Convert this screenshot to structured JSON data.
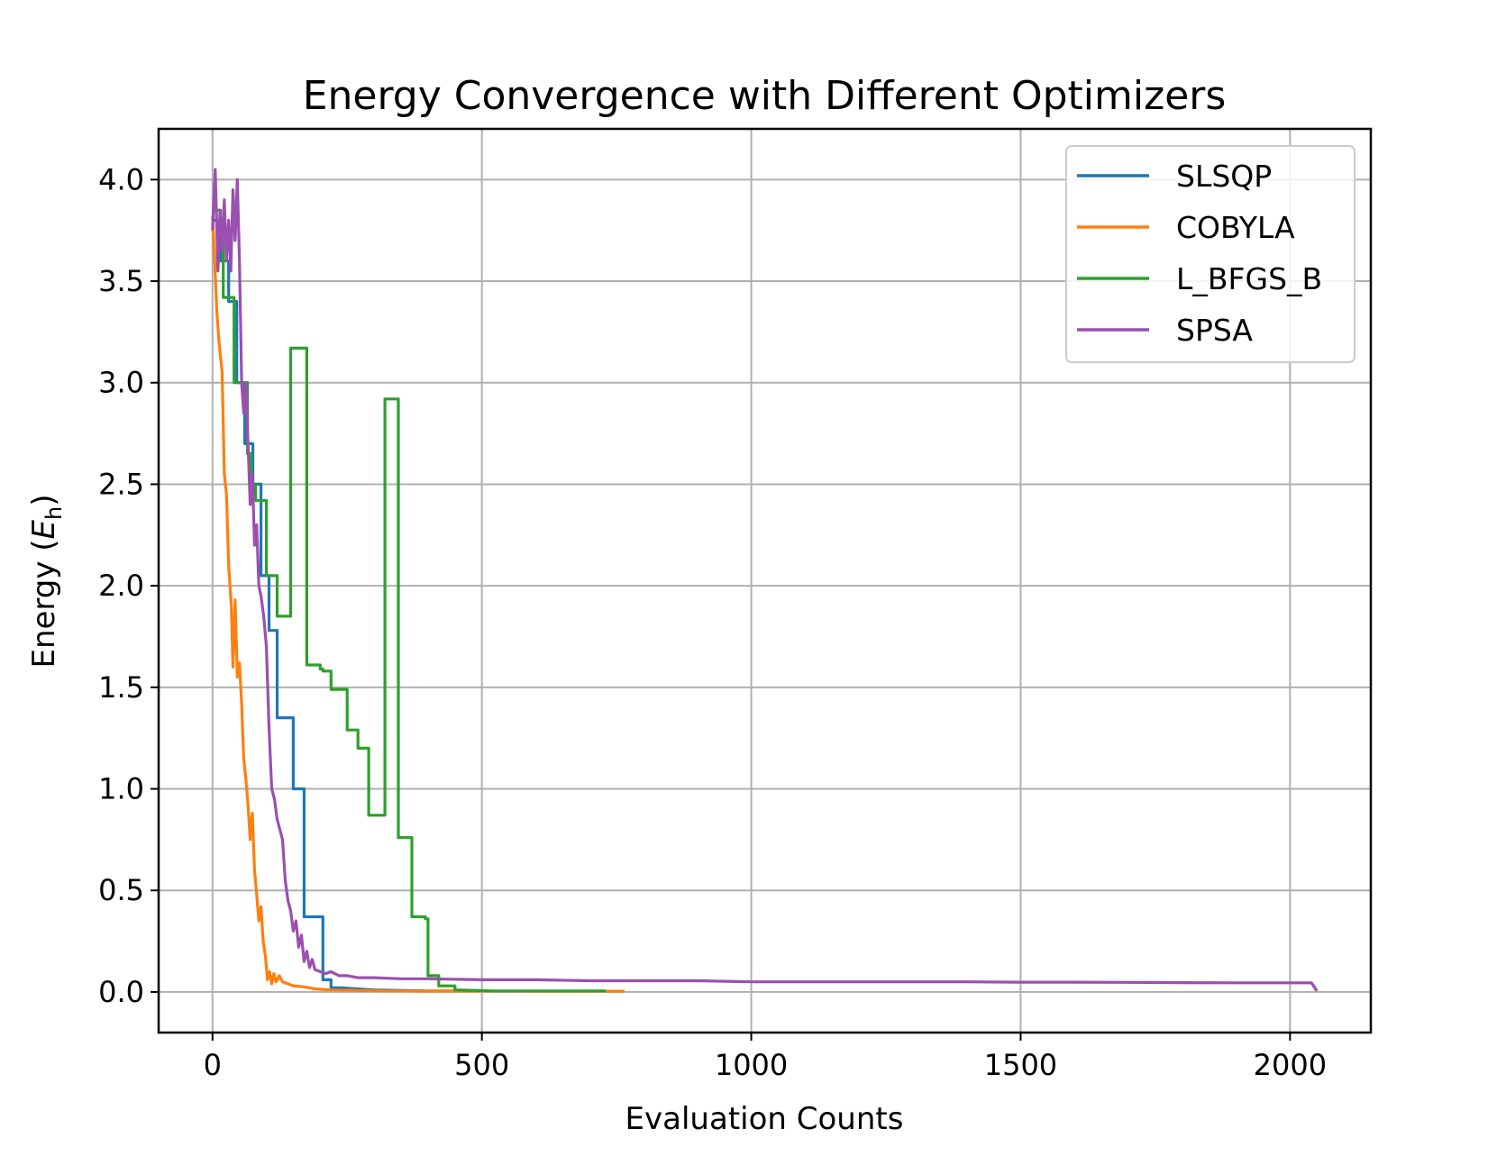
{
  "chart_data": {
    "type": "line",
    "title": "Energy Convergence with Different Optimizers",
    "xlabel": "Evaluation Counts",
    "ylabel_main": "Energy (",
    "ylabel_symbol": "E",
    "ylabel_sub": "h",
    "ylabel_close": ")",
    "xlim": [
      -100,
      2150
    ],
    "ylim": [
      -0.2,
      4.25
    ],
    "xticks": [
      0,
      500,
      1000,
      1500,
      2000
    ],
    "xtick_labels": [
      "0",
      "500",
      "1000",
      "1500",
      "2000"
    ],
    "yticks": [
      0.0,
      0.5,
      1.0,
      1.5,
      2.0,
      2.5,
      3.0,
      3.5,
      4.0
    ],
    "ytick_labels": [
      "0.0",
      "0.5",
      "1.0",
      "1.5",
      "2.0",
      "2.5",
      "3.0",
      "3.5",
      "4.0"
    ],
    "grid": true,
    "legend_position": "top-right",
    "series": [
      {
        "name": "SLSQP",
        "color": "#1f77b4",
        "x": [
          0,
          15,
          15,
          30,
          30,
          45,
          45,
          60,
          60,
          75,
          75,
          90,
          90,
          105,
          105,
          120,
          120,
          135,
          135,
          150,
          150,
          170,
          170,
          190,
          190,
          205,
          205,
          220,
          220,
          240,
          300,
          400,
          480
        ],
        "y": [
          3.8,
          3.8,
          3.6,
          3.6,
          3.4,
          3.4,
          3.0,
          3.0,
          2.7,
          2.7,
          2.5,
          2.5,
          2.05,
          2.05,
          1.78,
          1.78,
          1.35,
          1.35,
          1.35,
          1.35,
          1.0,
          1.0,
          0.37,
          0.37,
          0.37,
          0.37,
          0.06,
          0.06,
          0.02,
          0.02,
          0.01,
          0.005,
          0.005
        ]
      },
      {
        "name": "COBYLA",
        "color": "#ff7f0e",
        "x": [
          0,
          4,
          8,
          12,
          18,
          22,
          26,
          30,
          35,
          38,
          42,
          46,
          50,
          54,
          58,
          62,
          66,
          70,
          74,
          78,
          82,
          86,
          90,
          94,
          98,
          102,
          106,
          110,
          114,
          118,
          124,
          130,
          140,
          150,
          170,
          190,
          220,
          260,
          320,
          400,
          500,
          600,
          700,
          765
        ],
        "y": [
          3.82,
          3.6,
          3.35,
          3.2,
          3.05,
          2.55,
          2.45,
          2.1,
          1.9,
          1.6,
          1.93,
          1.55,
          1.62,
          1.42,
          1.15,
          1.05,
          0.92,
          0.75,
          0.88,
          0.6,
          0.48,
          0.35,
          0.42,
          0.25,
          0.18,
          0.06,
          0.1,
          0.04,
          0.09,
          0.05,
          0.08,
          0.05,
          0.04,
          0.03,
          0.025,
          0.015,
          0.01,
          0.008,
          0.005,
          0.004,
          0.004,
          0.003,
          0.003,
          0.003
        ]
      },
      {
        "name": "L_BFGS_B",
        "color": "#2ca02c",
        "x": [
          0,
          15,
          15,
          20,
          20,
          40,
          40,
          65,
          65,
          72,
          72,
          80,
          80,
          95,
          95,
          100,
          100,
          120,
          120,
          145,
          145,
          175,
          175,
          185,
          185,
          200,
          200,
          205,
          205,
          210,
          210,
          220,
          220,
          250,
          250,
          270,
          270,
          290,
          290,
          320,
          320,
          345,
          345,
          370,
          370,
          395,
          395,
          400,
          400,
          420,
          420,
          450,
          450,
          520,
          600,
          680,
          730
        ],
        "y": [
          3.85,
          3.85,
          3.7,
          3.7,
          3.42,
          3.42,
          3.0,
          3.0,
          2.65,
          2.65,
          2.5,
          2.5,
          2.42,
          2.42,
          2.42,
          2.42,
          2.05,
          2.05,
          1.85,
          1.85,
          3.17,
          3.17,
          1.61,
          1.61,
          1.61,
          1.61,
          1.59,
          1.59,
          1.58,
          1.58,
          1.58,
          1.58,
          1.49,
          1.49,
          1.29,
          1.29,
          1.2,
          1.2,
          0.87,
          0.87,
          2.92,
          2.92,
          0.76,
          0.76,
          0.37,
          0.37,
          0.36,
          0.36,
          0.08,
          0.08,
          0.03,
          0.03,
          0.01,
          0.005,
          0.005,
          0.005,
          0.005
        ]
      },
      {
        "name": "SPSA",
        "color": "#9b4fb0",
        "x": [
          0,
          5,
          10,
          14,
          18,
          22,
          26,
          30,
          34,
          38,
          42,
          46,
          50,
          54,
          58,
          62,
          66,
          70,
          74,
          78,
          82,
          86,
          90,
          95,
          100,
          105,
          110,
          115,
          120,
          125,
          130,
          135,
          140,
          145,
          150,
          155,
          160,
          165,
          170,
          175,
          180,
          185,
          190,
          200,
          210,
          220,
          235,
          250,
          270,
          300,
          350,
          400,
          500,
          600,
          700,
          800,
          900,
          1000,
          1100,
          1200,
          1300,
          1400,
          1500,
          1600,
          1700,
          1800,
          1900,
          2000,
          2040,
          2050
        ],
        "y": [
          3.75,
          4.05,
          3.55,
          3.85,
          3.65,
          3.9,
          3.6,
          3.8,
          3.55,
          3.95,
          3.7,
          4.0,
          3.6,
          3.0,
          2.85,
          3.0,
          2.7,
          2.4,
          2.55,
          2.2,
          2.3,
          2.0,
          1.95,
          1.85,
          1.7,
          1.3,
          1.0,
          0.95,
          0.85,
          0.8,
          0.75,
          0.55,
          0.45,
          0.4,
          0.3,
          0.35,
          0.22,
          0.28,
          0.15,
          0.2,
          0.12,
          0.16,
          0.11,
          0.1,
          0.09,
          0.1,
          0.08,
          0.08,
          0.07,
          0.07,
          0.065,
          0.065,
          0.06,
          0.06,
          0.055,
          0.055,
          0.055,
          0.05,
          0.05,
          0.05,
          0.05,
          0.05,
          0.048,
          0.048,
          0.047,
          0.046,
          0.045,
          0.045,
          0.045,
          0.005
        ]
      }
    ]
  }
}
